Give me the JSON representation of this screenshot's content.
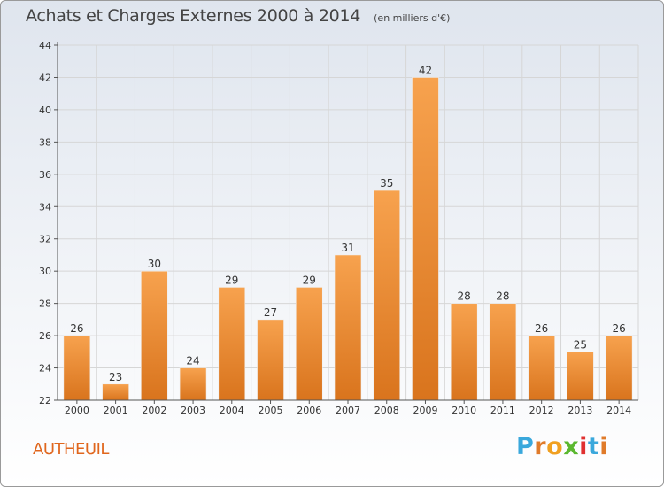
{
  "chart_data": {
    "type": "bar",
    "title": "Achats et Charges Externes 2000 à 2014",
    "subtitle": "(en milliers d'€)",
    "categories": [
      "2000",
      "2001",
      "2002",
      "2003",
      "2004",
      "2005",
      "2006",
      "2007",
      "2008",
      "2009",
      "2010",
      "2011",
      "2012",
      "2013",
      "2014"
    ],
    "values": [
      26,
      23,
      30,
      24,
      29,
      27,
      29,
      31,
      35,
      42,
      28,
      28,
      26,
      25,
      26
    ],
    "ylim": [
      22,
      44
    ],
    "yticks": [
      22,
      24,
      26,
      28,
      30,
      32,
      34,
      36,
      38,
      40,
      42,
      44
    ],
    "grid": true,
    "xlabel": "",
    "ylabel": "",
    "bar_color_top": "#f7a24e",
    "bar_color_bottom": "#d9741d"
  },
  "commune": "AUTHEUIL",
  "logo": {
    "text": "Proxiti",
    "letters": [
      "P",
      "r",
      "o",
      "x",
      "i",
      "t",
      "i"
    ],
    "colors": [
      "#3aa8dc",
      "#e07b2a",
      "#f0a020",
      "#5bb830",
      "#e03030",
      "#3aa8dc",
      "#e07b2a"
    ]
  }
}
